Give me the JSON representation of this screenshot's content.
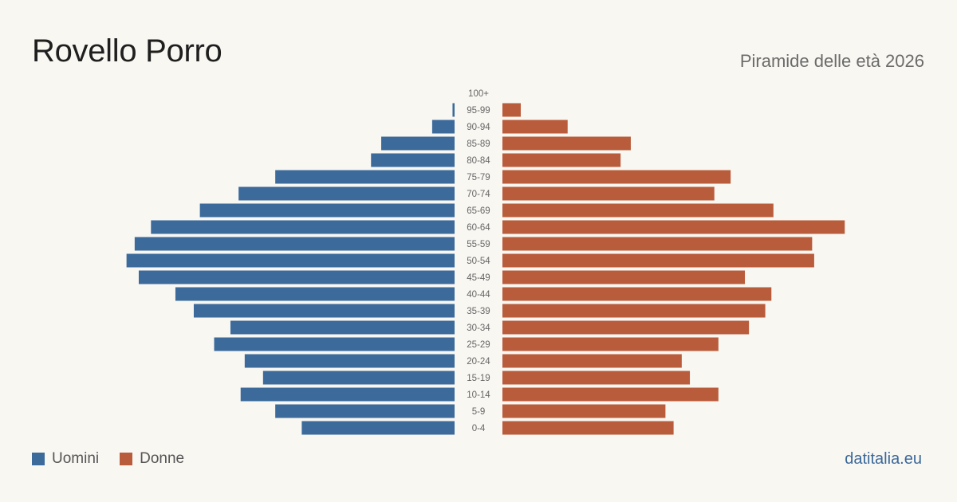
{
  "header": {
    "title": "Rovello Porro",
    "subtitle": "Piramide delle età 2026"
  },
  "legend": [
    {
      "label": "Uomini",
      "color": "#3b6a9b"
    },
    {
      "label": "Donne",
      "color": "#b95c3b"
    }
  ],
  "footer": {
    "brand": "datitalia.eu"
  },
  "chart_data": {
    "type": "bar",
    "orientation": "horizontal-pyramid",
    "title": "",
    "xlabel": "",
    "ylabel": "",
    "grid": false,
    "legend_position": "bottom-left",
    "categories": [
      "100+",
      "95-99",
      "90-94",
      "85-89",
      "80-84",
      "75-79",
      "70-74",
      "65-69",
      "60-64",
      "55-59",
      "50-54",
      "45-49",
      "40-44",
      "35-39",
      "30-34",
      "25-29",
      "20-24",
      "15-19",
      "10-14",
      "5-9",
      "0-4"
    ],
    "series": [
      {
        "name": "Uomini",
        "color": "#3b6a9b",
        "values": [
          0,
          1,
          11,
          36,
          41,
          88,
          106,
          125,
          149,
          157,
          161,
          155,
          137,
          128,
          110,
          118,
          103,
          94,
          105,
          88,
          75
        ]
      },
      {
        "name": "Donne",
        "color": "#b95c3b",
        "values": [
          0,
          9,
          32,
          63,
          58,
          112,
          104,
          133,
          168,
          152,
          153,
          119,
          132,
          129,
          121,
          106,
          88,
          92,
          106,
          80,
          84
        ]
      }
    ]
  }
}
